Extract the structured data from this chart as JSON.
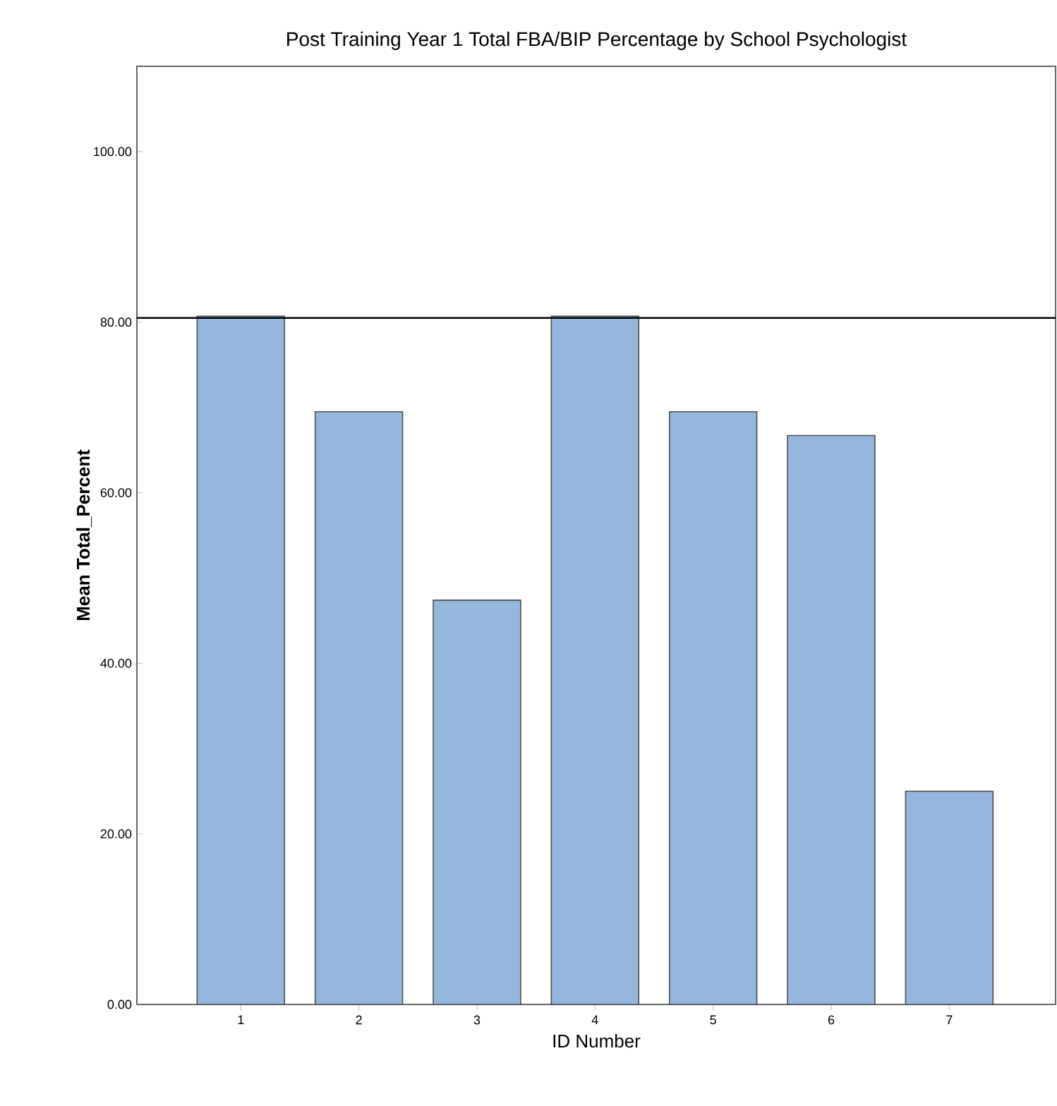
{
  "chart_data": {
    "type": "bar",
    "title": "Post Training Year 1 Total FBA/BIP Percentage by School Psychologist",
    "xlabel": "ID Number",
    "ylabel": "Mean Total_Percent",
    "categories": [
      "1",
      "2",
      "3",
      "4",
      "5",
      "6",
      "7"
    ],
    "values": [
      80.7,
      69.5,
      47.4,
      80.7,
      69.5,
      66.7,
      25.0
    ],
    "color": "#93b8dc",
    "ylim": [
      0,
      110
    ],
    "yticks": [
      {
        "value": 0,
        "label": "0.00"
      },
      {
        "value": 20,
        "label": "20.00"
      },
      {
        "value": 40,
        "label": "40.00"
      },
      {
        "value": 60,
        "label": "60.00"
      },
      {
        "value": 80,
        "label": "80.00"
      },
      {
        "value": 100,
        "label": "100.00"
      }
    ],
    "ref_lines": [
      {
        "axis": "y",
        "value": 80.5,
        "color": "#000000"
      }
    ],
    "grid": false
  }
}
